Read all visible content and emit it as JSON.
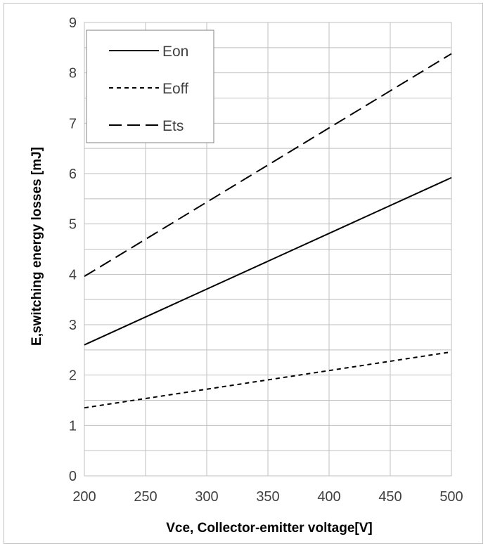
{
  "chart_data": {
    "type": "line",
    "xlabel": "Vce, Collector-emitter voltage[V]",
    "ylabel": "E,switching energy losses [mJ]",
    "xlim": [
      200,
      500
    ],
    "ylim": [
      0,
      9
    ],
    "x_ticks": [
      "200",
      "250",
      "300",
      "350",
      "400",
      "450",
      "500"
    ],
    "y_ticks": [
      "0",
      "1",
      "2",
      "3",
      "4",
      "5",
      "6",
      "7",
      "8",
      "9"
    ],
    "grid": true,
    "legend_position": "top-left",
    "series": [
      {
        "name": "Eon",
        "style": "solid",
        "x": [
          200,
          500
        ],
        "y": [
          2.6,
          5.92
        ]
      },
      {
        "name": "Eoff",
        "style": "dotted",
        "x": [
          200,
          500
        ],
        "y": [
          1.35,
          2.46
        ]
      },
      {
        "name": "Ets",
        "style": "dashed",
        "x": [
          200,
          500
        ],
        "y": [
          3.96,
          8.38
        ]
      }
    ],
    "colors": {
      "line": "#000000",
      "grid": "#bfbfbf",
      "tick_text": "#404040"
    }
  }
}
